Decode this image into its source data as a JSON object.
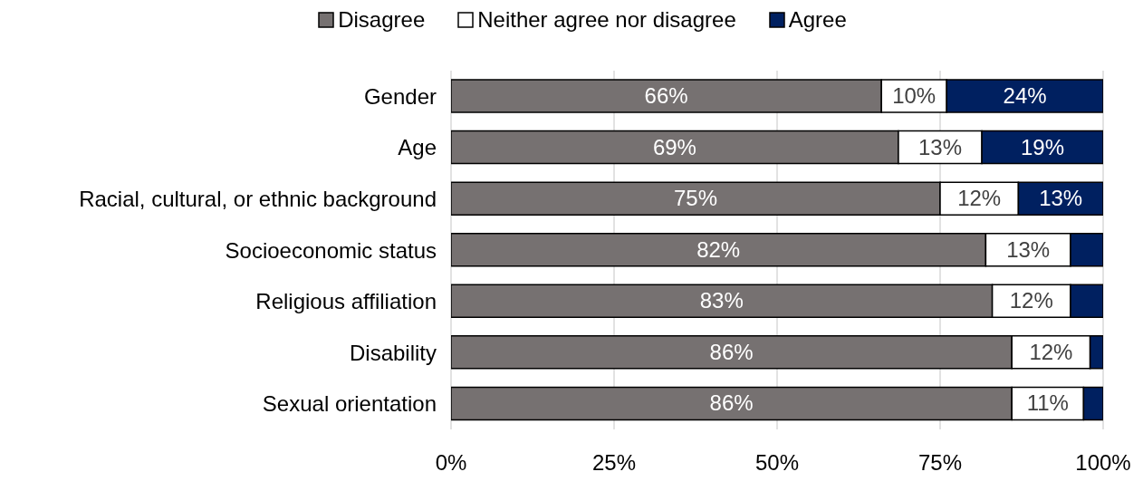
{
  "chart_data": {
    "type": "bar",
    "orientation": "horizontal",
    "stacked": true,
    "categories": [
      "Gender",
      "Age",
      "Racial, cultural, or ethnic background",
      "Socioeconomic status",
      "Religious affiliation",
      "Disability",
      "Sexual orientation"
    ],
    "series": [
      {
        "name": "Disagree",
        "color": "#767171",
        "values": [
          66,
          68.6,
          75,
          82,
          83,
          86,
          86
        ],
        "value_labels": [
          "66%",
          "69%",
          "75%",
          "82%",
          "83%",
          "86%",
          "86%"
        ]
      },
      {
        "name": "Neither agree nor disagree",
        "color": "#ffffff",
        "values": [
          10,
          12.8,
          12,
          13,
          12,
          12,
          11
        ],
        "value_labels": [
          "10%",
          "13%",
          "12%",
          "13%",
          "12%",
          "12%",
          "11%"
        ]
      },
      {
        "name": "Agree",
        "color": "#002060",
        "values": [
          24,
          18.6,
          13,
          5,
          5,
          2,
          3
        ],
        "value_labels": [
          "24%",
          "19%",
          "13%",
          null,
          null,
          null,
          null
        ]
      }
    ],
    "xlim": [
      0,
      100
    ],
    "xticks": [
      {
        "value": 0,
        "label": "0%"
      },
      {
        "value": 25,
        "label": "25%"
      },
      {
        "value": 50,
        "label": "50%"
      },
      {
        "value": 75,
        "label": "75%"
      },
      {
        "value": 100,
        "label": "100%"
      }
    ],
    "grid": "x",
    "legend": "top"
  }
}
